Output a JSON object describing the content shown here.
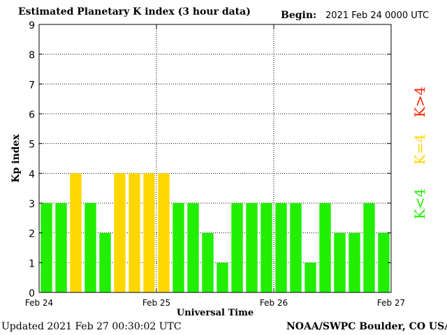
{
  "header": {
    "title": "Estimated Planetary K index (3 hour data)",
    "begin_label": "Begin:",
    "begin_value": "2021 Feb 24 0000 UTC"
  },
  "footer": {
    "updated": "Updated 2021 Feb 27 00:30:02 UTC",
    "source": "NOAA/SWPC Boulder, CO USA"
  },
  "legend": [
    {
      "label": "K<4",
      "color": "#22ee00"
    },
    {
      "label": "K=4",
      "color": "#ffd700"
    },
    {
      "label": "K>4",
      "color": "#ff2200"
    }
  ],
  "chart_data": {
    "type": "bar",
    "xlabel": "Universal Time",
    "ylabel": "Kp index",
    "ylim": [
      0,
      9
    ],
    "yticks": [
      0,
      1,
      2,
      3,
      4,
      5,
      6,
      7,
      8,
      9
    ],
    "xtick_labels": [
      "Feb 24",
      "Feb 25",
      "Feb 26",
      "Feb 27"
    ],
    "grid": true,
    "colors": {
      "below4": "#22ee00",
      "equal4": "#ffd700",
      "above4": "#ff2200"
    },
    "values": [
      3,
      3,
      4,
      3,
      2,
      4,
      4,
      4,
      4,
      3,
      3,
      2,
      1,
      3,
      3,
      3,
      3,
      3,
      1,
      3,
      2,
      2,
      3,
      2
    ]
  }
}
